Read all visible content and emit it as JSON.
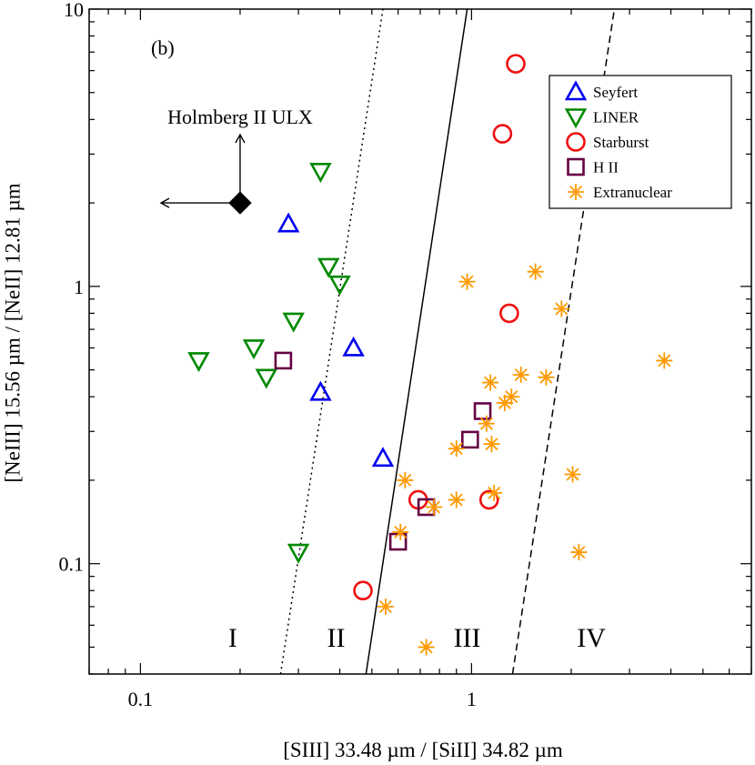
{
  "chart_data": {
    "type": "scatter",
    "panel_label": "(b)",
    "xlabel": "[SIII] 33.48 µm / [SiII] 34.82 µm",
    "ylabel": "[NeIII] 15.56 µm / [NeII] 12.81 µm",
    "xscale": "log",
    "yscale": "log",
    "xlim": [
      0.07,
      7.0
    ],
    "ylim": [
      0.04,
      10
    ],
    "xticks": [
      {
        "value": 0.1,
        "label": "0.1"
      },
      {
        "value": 1,
        "label": "1"
      }
    ],
    "yticks": [
      {
        "value": 0.1,
        "label": "0.1"
      },
      {
        "value": 1,
        "label": "1"
      },
      {
        "value": 10,
        "label": "10"
      }
    ],
    "grid": false,
    "legend_position": "top-right",
    "series": [
      {
        "name": "Seyfert",
        "marker": "triangle-up",
        "color": "#0000ee",
        "points": [
          [
            0.28,
            1.68
          ],
          [
            0.44,
            0.6
          ],
          [
            0.35,
            0.415
          ],
          [
            0.54,
            0.24
          ]
        ]
      },
      {
        "name": "LINER",
        "marker": "triangle-down",
        "color": "#008800",
        "points": [
          [
            0.35,
            2.6
          ],
          [
            0.37,
            1.18
          ],
          [
            0.4,
            1.02
          ],
          [
            0.29,
            0.75
          ],
          [
            0.22,
            0.6
          ],
          [
            0.15,
            0.54
          ],
          [
            0.24,
            0.47
          ],
          [
            0.3,
            0.11
          ]
        ]
      },
      {
        "name": "Starburst",
        "marker": "circle",
        "color": "#ee1111",
        "points": [
          [
            1.36,
            6.35
          ],
          [
            1.24,
            3.55
          ],
          [
            1.3,
            0.8
          ],
          [
            0.69,
            0.17
          ],
          [
            1.13,
            0.17
          ],
          [
            0.47,
            0.08
          ]
        ]
      },
      {
        "name": "H II",
        "marker": "square",
        "color": "#660044",
        "points": [
          [
            0.27,
            0.54
          ],
          [
            1.08,
            0.355
          ],
          [
            0.99,
            0.28
          ],
          [
            0.73,
            0.16
          ],
          [
            0.6,
            0.12
          ]
        ]
      },
      {
        "name": "Extranuclear",
        "marker": "asterisk",
        "color": "#ff9900",
        "points": [
          [
            0.97,
            1.04
          ],
          [
            1.56,
            1.13
          ],
          [
            1.87,
            0.83
          ],
          [
            3.82,
            0.54
          ],
          [
            1.41,
            0.48
          ],
          [
            1.68,
            0.47
          ],
          [
            1.14,
            0.45
          ],
          [
            1.32,
            0.4
          ],
          [
            1.26,
            0.38
          ],
          [
            1.11,
            0.32
          ],
          [
            1.15,
            0.27
          ],
          [
            0.9,
            0.26
          ],
          [
            1.17,
            0.18
          ],
          [
            0.63,
            0.2
          ],
          [
            0.9,
            0.17
          ],
          [
            0.77,
            0.16
          ],
          [
            2.02,
            0.21
          ],
          [
            0.61,
            0.13
          ],
          [
            2.11,
            0.11
          ],
          [
            0.55,
            0.07
          ],
          [
            0.73,
            0.05
          ]
        ]
      }
    ],
    "boundary_lines": [
      {
        "style": "dotted",
        "from": [
          0.265,
          0.04
        ],
        "to": [
          0.54,
          10
        ]
      },
      {
        "style": "solid",
        "from": [
          0.48,
          0.04
        ],
        "to": [
          0.97,
          10
        ]
      },
      {
        "style": "dashed",
        "from": [
          1.33,
          0.04
        ],
        "to": [
          2.7,
          10
        ]
      }
    ],
    "regions": [
      {
        "label": "I",
        "x": 0.19,
        "y": 0.055
      },
      {
        "label": "II",
        "x": 0.39,
        "y": 0.055
      },
      {
        "label": "III",
        "x": 0.97,
        "y": 0.055
      },
      {
        "label": "IV",
        "x": 2.3,
        "y": 0.055
      }
    ],
    "special_object": {
      "label": "Holmberg II ULX",
      "x": 0.2,
      "y": 2.0,
      "marker": "filled-diamond",
      "limits": [
        "upper-x",
        "lower-y"
      ]
    }
  }
}
